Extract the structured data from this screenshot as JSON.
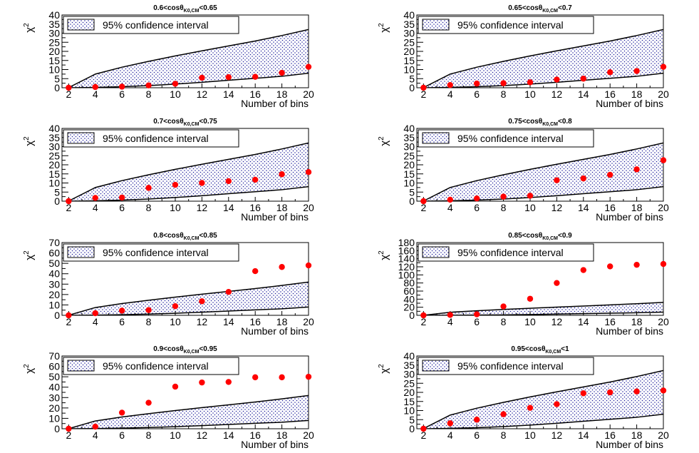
{
  "chart_data": [
    {
      "type": "scatter",
      "title": "0.6<cosθK0,CM<0.65",
      "title_main": "0.6<cos",
      "title_theta": "θ",
      "title_sub": "K0,CM",
      "title_tail": "<0.65",
      "ylabel": "χ2",
      "ylabel_main": "χ",
      "ylabel_sup": "2",
      "xlabel": "Number of bins",
      "legend": "95% confidence interval",
      "x": [
        2,
        4,
        6,
        8,
        10,
        12,
        14,
        16,
        18,
        20
      ],
      "y": [
        0,
        0.4,
        0.6,
        1.3,
        2.2,
        5.5,
        5.8,
        6.0,
        8.2,
        11.5
      ],
      "band_lower": [
        0,
        0.2,
        0.6,
        1.2,
        2.0,
        3.0,
        4.1,
        5.2,
        6.3,
        8.0
      ],
      "band_upper": [
        0.1,
        7.5,
        11.3,
        14.5,
        17.5,
        20.3,
        23.0,
        25.7,
        28.7,
        32.0
      ],
      "ylim": [
        0,
        40
      ],
      "yticks": [
        0,
        5,
        10,
        15,
        20,
        25,
        30,
        35,
        40
      ],
      "xlim": [
        1.5,
        20
      ],
      "xticks": [
        2,
        4,
        6,
        8,
        10,
        12,
        14,
        16,
        18,
        20
      ]
    },
    {
      "type": "scatter",
      "title": "0.65<cosθK0,CM<0.7",
      "title_main": "0.65<cos",
      "title_theta": "θ",
      "title_sub": "K0,CM",
      "title_tail": "<0.7",
      "ylabel": "χ2",
      "ylabel_main": "χ",
      "ylabel_sup": "2",
      "xlabel": "Number of bins",
      "legend": "95% confidence interval",
      "x": [
        2,
        4,
        6,
        8,
        10,
        12,
        14,
        16,
        18,
        20
      ],
      "y": [
        0,
        1.5,
        2.3,
        2.5,
        3.0,
        4.5,
        5.0,
        8.5,
        9.2,
        11.5
      ],
      "band_lower": [
        0,
        0.2,
        0.6,
        1.2,
        2.0,
        3.0,
        4.1,
        5.2,
        6.3,
        8.0
      ],
      "band_upper": [
        0.1,
        7.5,
        11.3,
        14.5,
        17.5,
        20.3,
        23.0,
        25.7,
        28.7,
        32.0
      ],
      "ylim": [
        0,
        40
      ],
      "yticks": [
        0,
        5,
        10,
        15,
        20,
        25,
        30,
        35,
        40
      ],
      "xlim": [
        1.5,
        20
      ],
      "xticks": [
        2,
        4,
        6,
        8,
        10,
        12,
        14,
        16,
        18,
        20
      ]
    },
    {
      "type": "scatter",
      "title": "0.7<cosθK0,CM<0.75",
      "title_main": "0.7<cos",
      "title_theta": "θ",
      "title_sub": "K0,CM",
      "title_tail": "<0.75",
      "ylabel": "χ2",
      "ylabel_main": "χ",
      "ylabel_sup": "2",
      "xlabel": "Number of bins",
      "legend": "95% confidence interval",
      "x": [
        2,
        4,
        6,
        8,
        10,
        12,
        14,
        16,
        18,
        20
      ],
      "y": [
        0,
        1.8,
        2.0,
        7.3,
        9.0,
        10.0,
        11.0,
        11.8,
        14.8,
        16.0
      ],
      "band_lower": [
        0,
        0.2,
        0.6,
        1.2,
        2.0,
        3.0,
        4.1,
        5.2,
        6.3,
        8.0
      ],
      "band_upper": [
        0.1,
        7.5,
        11.3,
        14.5,
        17.5,
        20.3,
        23.0,
        25.7,
        28.7,
        32.0
      ],
      "ylim": [
        0,
        40
      ],
      "yticks": [
        0,
        5,
        10,
        15,
        20,
        25,
        30,
        35,
        40
      ],
      "xlim": [
        1.5,
        20
      ],
      "xticks": [
        2,
        4,
        6,
        8,
        10,
        12,
        14,
        16,
        18,
        20
      ]
    },
    {
      "type": "scatter",
      "title": "0.75<cosθK0,CM<0.8",
      "title_main": "0.75<cos",
      "title_theta": "θ",
      "title_sub": "K0,CM",
      "title_tail": "<0.8",
      "ylabel": "χ2",
      "ylabel_main": "χ",
      "ylabel_sup": "2",
      "xlabel": "Number of bins",
      "legend": "95% confidence interval",
      "x": [
        2,
        4,
        6,
        8,
        10,
        12,
        14,
        16,
        18,
        20
      ],
      "y": [
        0,
        0.8,
        1.5,
        2.5,
        3.0,
        11.5,
        12.5,
        14.5,
        17.5,
        22.5
      ],
      "band_lower": [
        0,
        0.2,
        0.6,
        1.2,
        2.0,
        3.0,
        4.1,
        5.2,
        6.3,
        8.0
      ],
      "band_upper": [
        0.1,
        7.5,
        11.3,
        14.5,
        17.5,
        20.3,
        23.0,
        25.7,
        28.7,
        32.0
      ],
      "ylim": [
        0,
        40
      ],
      "yticks": [
        0,
        5,
        10,
        15,
        20,
        25,
        30,
        35,
        40
      ],
      "xlim": [
        1.5,
        20
      ],
      "xticks": [
        2,
        4,
        6,
        8,
        10,
        12,
        14,
        16,
        18,
        20
      ]
    },
    {
      "type": "scatter",
      "title": "0.8<cosθK0,CM<0.85",
      "title_main": "0.8<cos",
      "title_theta": "θ",
      "title_sub": "K0,CM",
      "title_tail": "<0.85",
      "ylabel": "χ2",
      "ylabel_main": "χ",
      "ylabel_sup": "2",
      "xlabel": "Number of bins",
      "legend": "95% confidence interval",
      "x": [
        2,
        4,
        6,
        8,
        10,
        12,
        14,
        16,
        18,
        20
      ],
      "y": [
        0,
        2.0,
        4.5,
        5.0,
        8.8,
        13.5,
        22.5,
        42.5,
        46.5,
        48.0
      ],
      "band_lower": [
        0,
        0.2,
        0.6,
        1.2,
        2.0,
        3.0,
        4.1,
        5.2,
        6.3,
        8.0
      ],
      "band_upper": [
        0.1,
        7.5,
        11.3,
        14.5,
        17.5,
        20.3,
        23.0,
        25.7,
        28.7,
        32.0
      ],
      "ylim": [
        0,
        70
      ],
      "yticks": [
        0,
        10,
        20,
        30,
        40,
        50,
        60,
        70
      ],
      "xlim": [
        1.5,
        20
      ],
      "xticks": [
        2,
        4,
        6,
        8,
        10,
        12,
        14,
        16,
        18,
        20
      ]
    },
    {
      "type": "scatter",
      "title": "0.85<cosθK0,CM<0.9",
      "title_main": "0.85<cos",
      "title_theta": "θ",
      "title_sub": "K0,CM",
      "title_tail": "<0.9",
      "ylabel": "χ2",
      "ylabel_main": "χ",
      "ylabel_sup": "2",
      "xlabel": "Number of bins",
      "legend": "95% confidence interval",
      "x": [
        2,
        4,
        6,
        8,
        10,
        12,
        14,
        16,
        18,
        20
      ],
      "y": [
        0,
        1.0,
        2.5,
        22.0,
        41.0,
        80.0,
        112.0,
        121.0,
        125.0,
        127.0
      ],
      "band_lower": [
        0,
        0.2,
        0.6,
        1.2,
        2.0,
        3.0,
        4.1,
        5.2,
        6.3,
        8.0
      ],
      "band_upper": [
        0.1,
        7.5,
        11.3,
        14.5,
        17.5,
        20.3,
        23.0,
        25.7,
        28.7,
        32.0
      ],
      "ylim": [
        0,
        180
      ],
      "yticks": [
        0,
        20,
        40,
        60,
        80,
        100,
        120,
        140,
        160,
        180
      ],
      "xlim": [
        1.5,
        20
      ],
      "xticks": [
        2,
        4,
        6,
        8,
        10,
        12,
        14,
        16,
        18,
        20
      ]
    },
    {
      "type": "scatter",
      "title": "0.9<cosθK0,CM<0.95",
      "title_main": "0.9<cos",
      "title_theta": "θ",
      "title_sub": "K0,CM",
      "title_tail": "<0.95",
      "ylabel": "χ2",
      "ylabel_main": "χ",
      "ylabel_sup": "2",
      "xlabel": "Number of bins",
      "legend": "95% confidence interval",
      "x": [
        2,
        4,
        6,
        8,
        10,
        12,
        14,
        16,
        18,
        20
      ],
      "y": [
        0,
        2.0,
        15.5,
        25.0,
        40.5,
        44.5,
        45.0,
        49.5,
        49.5,
        50.0
      ],
      "band_lower": [
        0,
        0.2,
        0.6,
        1.2,
        2.0,
        3.0,
        4.1,
        5.2,
        6.3,
        8.0
      ],
      "band_upper": [
        0.1,
        7.5,
        11.3,
        14.5,
        17.5,
        20.3,
        23.0,
        25.7,
        28.7,
        32.0
      ],
      "ylim": [
        0,
        70
      ],
      "yticks": [
        0,
        10,
        20,
        30,
        40,
        50,
        60,
        70
      ],
      "xlim": [
        1.5,
        20
      ],
      "xticks": [
        2,
        4,
        6,
        8,
        10,
        12,
        14,
        16,
        18,
        20
      ]
    },
    {
      "type": "scatter",
      "title": "0.95<cosθK0,CM<1",
      "title_main": "0.95<cos",
      "title_theta": "θ",
      "title_sub": "K0,CM",
      "title_tail": "<1",
      "ylabel": "χ2",
      "ylabel_main": "χ",
      "ylabel_sup": "2",
      "xlabel": "Number of bins",
      "legend": "95% confidence interval",
      "x": [
        2,
        4,
        6,
        8,
        10,
        12,
        14,
        16,
        18,
        20
      ],
      "y": [
        0,
        3.0,
        5.0,
        8.0,
        11.5,
        13.5,
        19.5,
        20.0,
        20.5,
        21.0
      ],
      "band_lower": [
        0,
        0.2,
        0.6,
        1.2,
        2.0,
        3.0,
        4.1,
        5.2,
        6.3,
        8.0
      ],
      "band_upper": [
        0.1,
        7.5,
        11.3,
        14.5,
        17.5,
        20.3,
        23.0,
        25.7,
        28.7,
        32.0
      ],
      "ylim": [
        0,
        40
      ],
      "yticks": [
        0,
        5,
        10,
        15,
        20,
        25,
        30,
        35,
        40
      ],
      "xlim": [
        1.5,
        20
      ],
      "xticks": [
        2,
        4,
        6,
        8,
        10,
        12,
        14,
        16,
        18,
        20
      ]
    }
  ],
  "colors": {
    "marker": "#ff0000",
    "band_dot": "#1a1a99",
    "band_fill": "#ffffff",
    "axis": "#000000"
  }
}
